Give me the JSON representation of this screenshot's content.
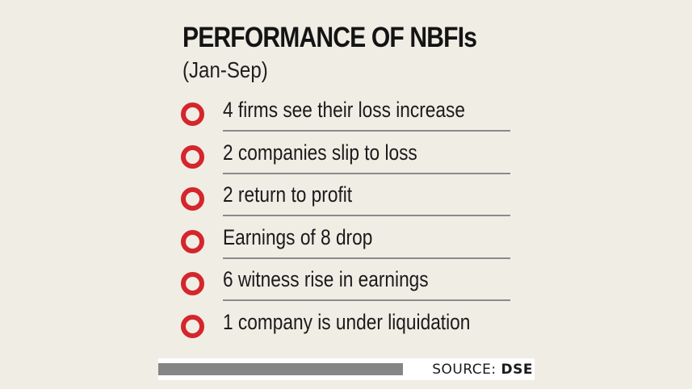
{
  "header": {
    "title": "PERFORMANCE OF NBFIs",
    "subtitle": "(Jan-Sep)"
  },
  "items": [
    {
      "label": "4 firms see their loss increase"
    },
    {
      "label": "2 companies slip to loss"
    },
    {
      "label": "2 return to profit"
    },
    {
      "label": "Earnings of 8 drop"
    },
    {
      "label": "6 witness rise in earnings"
    },
    {
      "label": "1 company is under liquidation"
    }
  ],
  "source": {
    "prefix": "SOURCE:",
    "name": "DSE"
  },
  "colors": {
    "background": "#f0ede5",
    "bullet": "#d4262c",
    "rule": "#8a8a8a",
    "source_bar": "#858585"
  }
}
